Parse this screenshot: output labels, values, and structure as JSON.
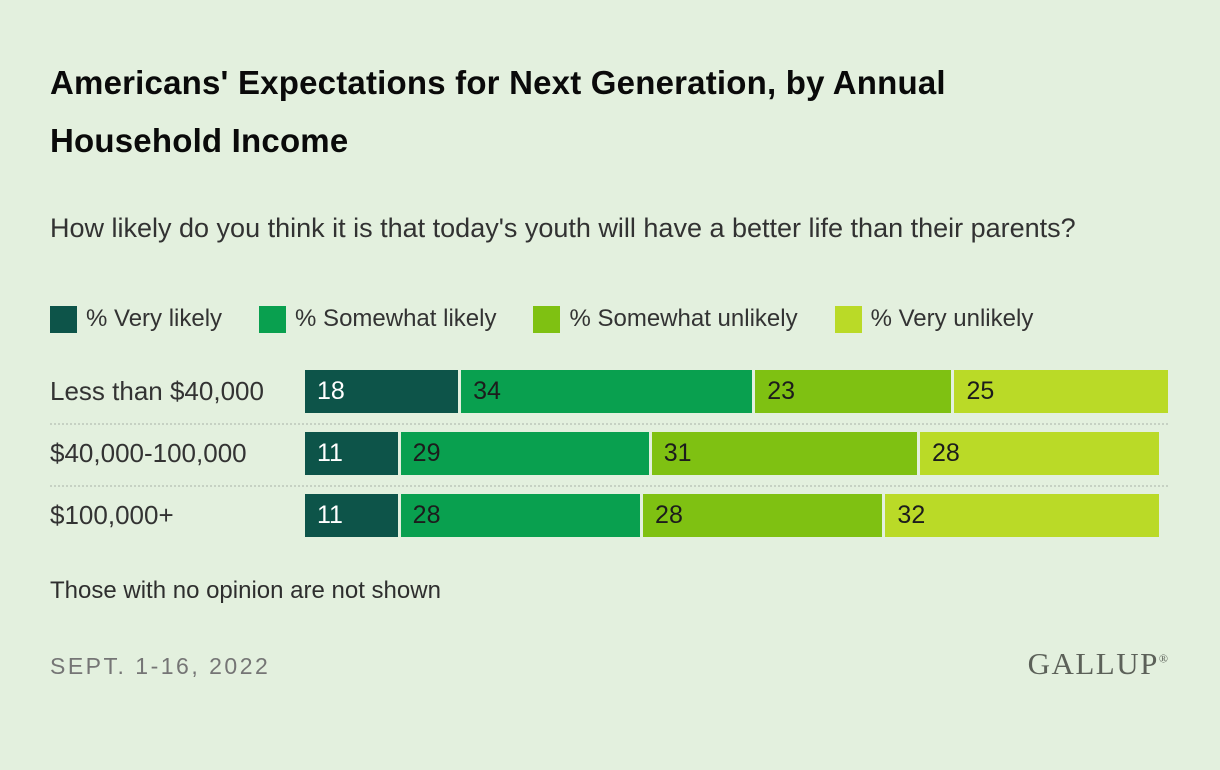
{
  "page": {
    "background": "#e3f0de",
    "title": "Americans' Expectations for Next Generation, by Annual Household Income",
    "question": "How likely do you think it is that today's youth will have a better life than their parents?",
    "footnote": "Those with no opinion are not shown",
    "date": "SEPT. 1-16, 2022",
    "brand": "GALLUP",
    "brand_mark": "®"
  },
  "chart_data": {
    "type": "bar",
    "orientation": "horizontal",
    "stacked": true,
    "grid": false,
    "legend_position": "top",
    "value_labels": "inside-start",
    "xlim": [
      0,
      100
    ],
    "categories": [
      "Less than $40,000",
      "$40,000-100,000",
      "$100,000+"
    ],
    "series": [
      {
        "name": "% Very likely",
        "color": "#0d5449",
        "label_color": "#ffffff",
        "values": [
          18,
          11,
          11
        ]
      },
      {
        "name": "% Somewhat likely",
        "color": "#09a04f",
        "label_color": "#1c1c1c",
        "values": [
          34,
          29,
          28
        ]
      },
      {
        "name": "% Somewhat unlikely",
        "color": "#7fc112",
        "label_color": "#1c1c1c",
        "values": [
          23,
          31,
          28
        ]
      },
      {
        "name": "% Very unlikely",
        "color": "#bada27",
        "label_color": "#1c1c1c",
        "values": [
          25,
          28,
          32
        ]
      }
    ]
  }
}
